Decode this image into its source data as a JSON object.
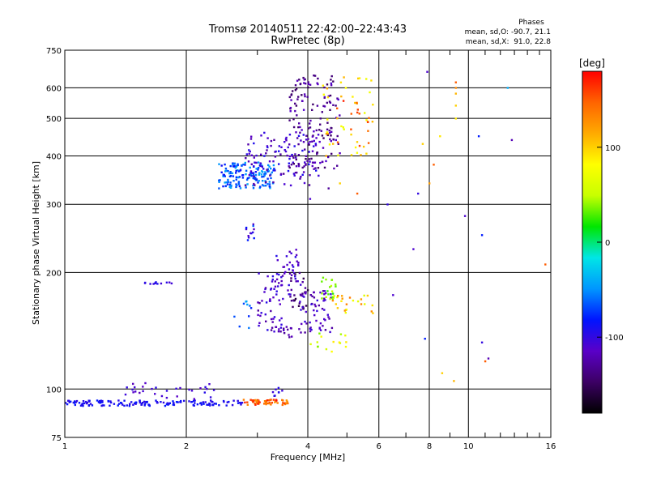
{
  "chart_data": {
    "type": "scatter",
    "title": "Tromsø 20140511 22:42:00–22:43:43",
    "subtitle": "RwPretec (8p)",
    "xlabel": "Frequency [MHz]",
    "ylabel": "Stationary phase Virtual Height [km]",
    "x_scale": "log",
    "y_scale": "log",
    "xlim": [
      1,
      16
    ],
    "ylim": [
      75,
      750
    ],
    "x_ticks": [
      1,
      2,
      4,
      6,
      8,
      10,
      16
    ],
    "x_minor_ticks": [
      3,
      5,
      7,
      9,
      11,
      12,
      13,
      14,
      15
    ],
    "y_ticks": [
      75,
      100,
      200,
      300,
      400,
      500,
      600,
      750
    ],
    "grid": true,
    "colorbar": {
      "label": "[deg]",
      "range": [
        -180,
        180
      ],
      "ticks": [
        100,
        0,
        -100
      ],
      "colors": [
        "#000000",
        "#3c0064",
        "#5a00c8",
        "#0014ff",
        "#0096ff",
        "#00e6e6",
        "#00e600",
        "#c8ff00",
        "#ffff00",
        "#ffaa00",
        "#ff6400",
        "#ff0000"
      ]
    },
    "stats_header": "Phases",
    "stats_o": "mean, sd,O: -90.7, 21.1",
    "stats_x": "mean, sd,X:  91.0, 22.8",
    "clusters": [
      {
        "x": [
          1.0,
          2.75
        ],
        "y": [
          90.5,
          93.5
        ],
        "phase": [
          -100,
          -80
        ],
        "n": 150
      },
      {
        "x": [
          2.75,
          3.6
        ],
        "y": [
          91,
          94
        ],
        "phase": [
          120,
          175
        ],
        "n": 60
      },
      {
        "x": [
          1.4,
          2.4
        ],
        "y": [
          94,
          104
        ],
        "phase": [
          -120,
          -95
        ],
        "n": 30
      },
      {
        "x": [
          3.2,
          3.5
        ],
        "y": [
          95,
          102
        ],
        "phase": [
          -110,
          -90
        ],
        "n": 8
      },
      {
        "x": [
          2.4,
          3.3
        ],
        "y": [
          330,
          385
        ],
        "phase": [
          -90,
          -40
        ],
        "n": 160
      },
      {
        "x": [
          2.8,
          4.3
        ],
        "y": [
          335,
          460
        ],
        "phase": [
          -130,
          -90
        ],
        "n": 120
      },
      {
        "x": [
          3.6,
          4.8
        ],
        "y": [
          370,
          650
        ],
        "phase": [
          -150,
          -110
        ],
        "n": 150
      },
      {
        "x": [
          4.3,
          5.8
        ],
        "y": [
          400,
          650
        ],
        "phase": [
          70,
          120
        ],
        "n": 40
      },
      {
        "x": [
          4.6,
          5.7
        ],
        "y": [
          420,
          560
        ],
        "phase": [
          140,
          175
        ],
        "n": 15
      },
      {
        "x": [
          3.0,
          3.5
        ],
        "y": [
          140,
          200
        ],
        "phase": [
          -130,
          -95
        ],
        "n": 50
      },
      {
        "x": [
          3.3,
          3.85
        ],
        "y": [
          175,
          230
        ],
        "phase": [
          -120,
          -95
        ],
        "n": 40
      },
      {
        "x": [
          3.6,
          4.0
        ],
        "y": [
          160,
          200
        ],
        "phase": [
          -160,
          -120
        ],
        "n": 30
      },
      {
        "x": [
          3.8,
          4.6
        ],
        "y": [
          140,
          180
        ],
        "phase": [
          -130,
          -100
        ],
        "n": 60
      },
      {
        "x": [
          4.3,
          4.7
        ],
        "y": [
          170,
          195
        ],
        "phase": [
          20,
          50
        ],
        "n": 20
      },
      {
        "x": [
          4.6,
          5.8
        ],
        "y": [
          155,
          175
        ],
        "phase": [
          60,
          140
        ],
        "n": 25
      },
      {
        "x": [
          4.0,
          5.0
        ],
        "y": [
          125,
          140
        ],
        "phase": [
          20,
          90
        ],
        "n": 15
      },
      {
        "x": [
          3.2,
          3.7
        ],
        "y": [
          135,
          145
        ],
        "phase": [
          -130,
          -110
        ],
        "n": 15
      },
      {
        "x": [
          2.8,
          2.95
        ],
        "y": [
          240,
          270
        ],
        "phase": [
          -120,
          -60
        ],
        "n": 12
      },
      {
        "x": [
          1.55,
          1.85
        ],
        "y": [
          186,
          189
        ],
        "phase": [
          -110,
          -90
        ],
        "n": 12
      },
      {
        "x": [
          2.6,
          2.9
        ],
        "y": [
          140,
          170
        ],
        "phase": [
          -80,
          -40
        ],
        "n": 10
      }
    ],
    "isolated_points": [
      {
        "x": 9.3,
        "y": 620,
        "phase": 150
      },
      {
        "x": 9.3,
        "y": 600,
        "phase": 130
      },
      {
        "x": 9.3,
        "y": 580,
        "phase": 110
      },
      {
        "x": 9.3,
        "y": 540,
        "phase": 100
      },
      {
        "x": 9.3,
        "y": 500,
        "phase": 90
      },
      {
        "x": 7.9,
        "y": 660,
        "phase": -110
      },
      {
        "x": 8.2,
        "y": 380,
        "phase": 150
      },
      {
        "x": 8.0,
        "y": 340,
        "phase": 120
      },
      {
        "x": 7.7,
        "y": 430,
        "phase": 100
      },
      {
        "x": 8.5,
        "y": 450,
        "phase": 90
      },
      {
        "x": 10.6,
        "y": 450,
        "phase": -80
      },
      {
        "x": 12.8,
        "y": 440,
        "phase": -120
      },
      {
        "x": 9.8,
        "y": 280,
        "phase": -110
      },
      {
        "x": 10.8,
        "y": 250,
        "phase": -80
      },
      {
        "x": 7.3,
        "y": 230,
        "phase": -110
      },
      {
        "x": 6.3,
        "y": 300,
        "phase": -100
      },
      {
        "x": 7.5,
        "y": 320,
        "phase": -100
      },
      {
        "x": 11.2,
        "y": 120,
        "phase": -120
      },
      {
        "x": 10.8,
        "y": 132,
        "phase": -100
      },
      {
        "x": 9.2,
        "y": 105,
        "phase": 110
      },
      {
        "x": 11.0,
        "y": 118,
        "phase": 150
      },
      {
        "x": 15.5,
        "y": 210,
        "phase": 150
      },
      {
        "x": 12.5,
        "y": 600,
        "phase": -40
      },
      {
        "x": 5.3,
        "y": 320,
        "phase": 150
      },
      {
        "x": 4.8,
        "y": 340,
        "phase": 100
      },
      {
        "x": 6.5,
        "y": 175,
        "phase": -110
      },
      {
        "x": 7.8,
        "y": 135,
        "phase": -80
      },
      {
        "x": 8.6,
        "y": 110,
        "phase": 100
      },
      {
        "x": 4.05,
        "y": 310,
        "phase": -110
      },
      {
        "x": 4.5,
        "y": 330,
        "phase": -130
      }
    ]
  }
}
